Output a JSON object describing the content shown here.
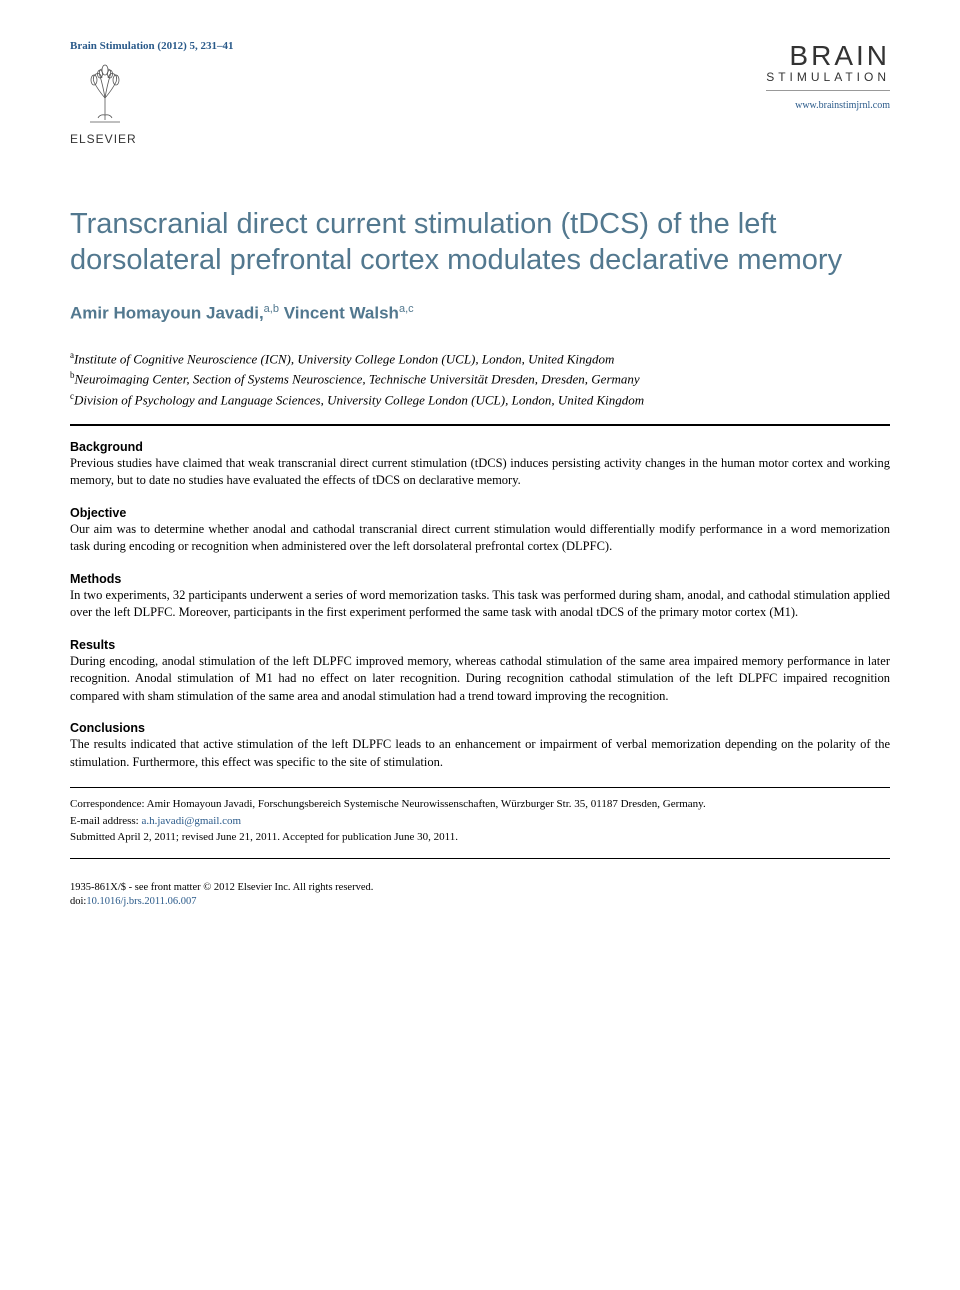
{
  "header": {
    "journal_ref": "Brain Stimulation (2012) 5, 231–41",
    "elsevier_label": "ELSEVIER",
    "brand_title": "BRAIN",
    "brand_subtitle": "STIMULATION",
    "brand_url": "www.brainstimjrnl.com"
  },
  "article": {
    "title": "Transcranial direct current stimulation (tDCS) of the left dorsolateral prefrontal cortex modulates declarative memory",
    "authors_html": "Amir Homayoun Javadi,<sup>a,b</sup> Vincent Walsh<sup>a,c</sup>",
    "affiliations": [
      {
        "sup": "a",
        "text": "Institute of Cognitive Neuroscience (ICN), University College London (UCL), London, United Kingdom"
      },
      {
        "sup": "b",
        "text": "Neuroimaging Center, Section of Systems Neuroscience, Technische Universität Dresden, Dresden, Germany"
      },
      {
        "sup": "c",
        "text": "Division of Psychology and Language Sciences, University College London (UCL), London, United Kingdom"
      }
    ]
  },
  "sections": [
    {
      "heading": "Background",
      "body": "Previous studies have claimed that weak transcranial direct current stimulation (tDCS) induces persisting activity changes in the human motor cortex and working memory, but to date no studies have evaluated the effects of tDCS on declarative memory."
    },
    {
      "heading": "Objective",
      "body": "Our aim was to determine whether anodal and cathodal transcranial direct current stimulation would differentially modify performance in a word memorization task during encoding or recognition when administered over the left dorsolateral prefrontal cortex (DLPFC)."
    },
    {
      "heading": "Methods",
      "body": "In two experiments, 32 participants underwent a series of word memorization tasks. This task was performed during sham, anodal, and cathodal stimulation applied over the left DLPFC. Moreover, participants in the first experiment performed the same task with anodal tDCS of the primary motor cortex (M1)."
    },
    {
      "heading": "Results",
      "body": "During encoding, anodal stimulation of the left DLPFC improved memory, whereas cathodal stimulation of the same area impaired memory performance in later recognition. Anodal stimulation of M1 had no effect on later recognition. During recognition cathodal stimulation of the left DLPFC impaired recognition compared with sham stimulation of the same area and anodal stimulation had a trend toward improving the recognition."
    },
    {
      "heading": "Conclusions",
      "body": "The results indicated that active stimulation of the left DLPFC leads to an enhancement or impairment of verbal memorization depending on the polarity of the stimulation. Furthermore, this effect was specific to the site of stimulation."
    }
  ],
  "correspondence": {
    "line1": "Correspondence: Amir Homayoun Javadi, Forschungsbereich Systemische Neurowissenschaften, Würzburger Str. 35, 01187 Dresden, Germany.",
    "email_label": "E-mail address:",
    "email": "a.h.javadi@gmail.com",
    "submitted": "Submitted April 2, 2011; revised June 21, 2011. Accepted for publication June 30, 2011."
  },
  "footer": {
    "issn_line": "1935-861X/$ - see front matter © 2012 Elsevier Inc. All rights reserved.",
    "doi_label": "doi:",
    "doi": "10.1016/j.brs.2011.06.007"
  },
  "colors": {
    "link": "#2a5a8a",
    "title": "#52788f",
    "text": "#000000",
    "bg": "#ffffff"
  },
  "typography": {
    "title_fontsize": 29,
    "author_fontsize": 17,
    "body_fontsize": 12.5,
    "footer_fontsize": 10.5
  }
}
